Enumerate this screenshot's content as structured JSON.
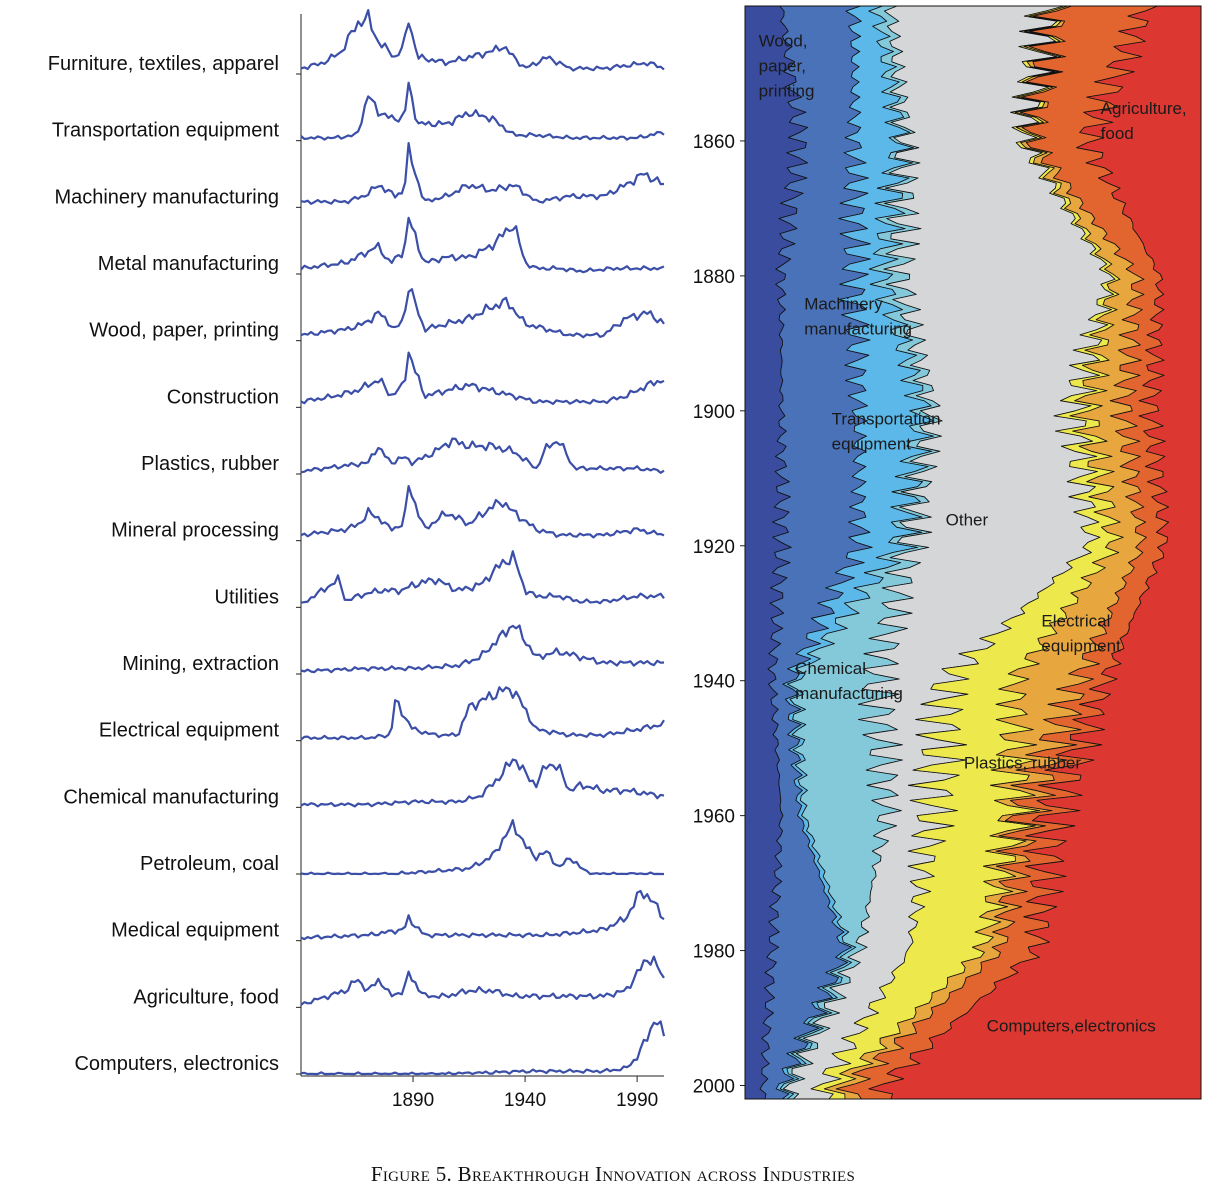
{
  "caption": "Figure 5. Breakthrough Innovation across Industries",
  "chart_data": [
    {
      "type": "line",
      "subtype": "ridgeline",
      "title": "",
      "line_color": "#3b4fa8",
      "x_range": [
        1840,
        2002
      ],
      "x_ticks": [
        1890,
        1940,
        1990
      ],
      "x_tick_labels": [
        "1890",
        "1940",
        "1990"
      ],
      "ylabel": "",
      "series": [
        {
          "name": "Furniture, textiles, apparel",
          "x": [
            1840,
            1850,
            1858,
            1865,
            1870,
            1874,
            1882,
            1886,
            1888,
            1892,
            1905,
            1915,
            1925,
            1930,
            1940,
            1950,
            1960,
            1975,
            1985,
            1995,
            2002
          ],
          "values": [
            0.1,
            0.2,
            0.4,
            0.9,
            1.0,
            0.6,
            0.3,
            0.5,
            1.0,
            0.3,
            0.2,
            0.3,
            0.4,
            0.5,
            0.1,
            0.3,
            0.1,
            0.1,
            0.15,
            0.2,
            0.1
          ]
        },
        {
          "name": "Transportation equipment",
          "x": [
            1840,
            1855,
            1865,
            1870,
            1875,
            1880,
            1886,
            1888,
            1892,
            1905,
            1915,
            1925,
            1935,
            1945,
            1960,
            1975,
            1990,
            2002
          ],
          "values": [
            0.05,
            0.05,
            0.1,
            0.8,
            0.5,
            0.4,
            0.4,
            1.0,
            0.3,
            0.3,
            0.5,
            0.4,
            0.1,
            0.1,
            0.05,
            0.05,
            0.05,
            0.15
          ]
        },
        {
          "name": "Machinery manufacturing",
          "x": [
            1840,
            1860,
            1868,
            1875,
            1882,
            1886,
            1888,
            1895,
            1905,
            1915,
            1925,
            1935,
            1945,
            1960,
            1975,
            1985,
            1993,
            2002
          ],
          "values": [
            0.1,
            0.1,
            0.2,
            0.4,
            0.2,
            0.3,
            1.0,
            0.1,
            0.2,
            0.4,
            0.3,
            0.4,
            0.1,
            0.2,
            0.2,
            0.4,
            0.6,
            0.4
          ]
        },
        {
          "name": "Metal manufacturing",
          "x": [
            1840,
            1860,
            1870,
            1874,
            1880,
            1886,
            1888,
            1895,
            1905,
            1915,
            1925,
            1930,
            1935,
            1940,
            1945,
            1955,
            1965,
            1980,
            1990,
            2002
          ],
          "values": [
            0.1,
            0.2,
            0.4,
            0.5,
            0.2,
            0.4,
            1.0,
            0.2,
            0.3,
            0.3,
            0.5,
            0.7,
            0.9,
            0.2,
            0.1,
            0.1,
            0.05,
            0.1,
            0.1,
            0.1
          ]
        },
        {
          "name": "Wood, paper, printing",
          "x": [
            1840,
            1860,
            1868,
            1875,
            1882,
            1886,
            1888,
            1895,
            1905,
            1915,
            1920,
            1925,
            1932,
            1940,
            1950,
            1960,
            1975,
            1985,
            1995,
            2002
          ],
          "values": [
            0.1,
            0.2,
            0.3,
            0.5,
            0.2,
            0.4,
            1.0,
            0.2,
            0.3,
            0.4,
            0.5,
            0.6,
            0.7,
            0.3,
            0.2,
            0.1,
            0.1,
            0.4,
            0.5,
            0.3
          ]
        },
        {
          "name": "Construction",
          "x": [
            1840,
            1855,
            1865,
            1870,
            1875,
            1880,
            1886,
            1888,
            1895,
            1905,
            1915,
            1925,
            1935,
            1945,
            1960,
            1975,
            1985,
            1995,
            2002
          ],
          "values": [
            0.1,
            0.2,
            0.3,
            0.4,
            0.5,
            0.2,
            0.4,
            1.0,
            0.2,
            0.3,
            0.4,
            0.3,
            0.2,
            0.1,
            0.1,
            0.1,
            0.2,
            0.4,
            0.5
          ]
        },
        {
          "name": "Plastics, rubber",
          "x": [
            1840,
            1860,
            1870,
            1874,
            1880,
            1886,
            1890,
            1900,
            1907,
            1915,
            1925,
            1935,
            1945,
            1950,
            1955,
            1962,
            1975,
            1990,
            2002
          ],
          "values": [
            0.05,
            0.15,
            0.2,
            0.5,
            0.2,
            0.3,
            0.2,
            0.4,
            0.6,
            0.5,
            0.5,
            0.4,
            0.1,
            0.5,
            0.6,
            0.1,
            0.1,
            0.1,
            0.05
          ]
        },
        {
          "name": "Mineral processing",
          "x": [
            1840,
            1860,
            1866,
            1870,
            1875,
            1880,
            1886,
            1888,
            1895,
            1905,
            1915,
            1925,
            1930,
            1935,
            1945,
            1955,
            1965,
            1975,
            1990,
            2002
          ],
          "values": [
            0.1,
            0.2,
            0.3,
            0.5,
            0.4,
            0.2,
            0.3,
            1.0,
            0.2,
            0.5,
            0.3,
            0.6,
            0.7,
            0.5,
            0.2,
            0.1,
            0.1,
            0.1,
            0.2,
            0.1
          ]
        },
        {
          "name": "Utilities",
          "x": [
            1840,
            1857,
            1860,
            1865,
            1875,
            1885,
            1890,
            1900,
            1910,
            1920,
            1925,
            1930,
            1935,
            1940,
            1945,
            1955,
            1965,
            1975,
            1990,
            2002
          ],
          "values": [
            0.05,
            0.5,
            0.1,
            0.2,
            0.3,
            0.3,
            0.4,
            0.5,
            0.3,
            0.4,
            0.6,
            0.8,
            0.9,
            0.3,
            0.2,
            0.2,
            0.1,
            0.1,
            0.2,
            0.2
          ]
        },
        {
          "name": "Mining, extraction",
          "x": [
            1840,
            1870,
            1890,
            1910,
            1920,
            1925,
            1930,
            1935,
            1940,
            1945,
            1955,
            1965,
            1975,
            1990,
            2002
          ],
          "values": [
            0.05,
            0.1,
            0.1,
            0.15,
            0.3,
            0.5,
            0.7,
            0.9,
            0.6,
            0.3,
            0.4,
            0.3,
            0.2,
            0.2,
            0.2
          ]
        },
        {
          "name": "Electrical equipment",
          "x": [
            1840,
            1870,
            1880,
            1882,
            1890,
            1900,
            1910,
            1915,
            1925,
            1930,
            1935,
            1945,
            1960,
            1975,
            1990,
            2002
          ],
          "values": [
            0.05,
            0.05,
            0.1,
            0.7,
            0.2,
            0.1,
            0.1,
            0.6,
            0.8,
            0.9,
            0.9,
            0.2,
            0.1,
            0.1,
            0.2,
            0.3
          ]
        },
        {
          "name": "Chemical manufacturing",
          "x": [
            1840,
            1870,
            1890,
            1910,
            1920,
            1930,
            1935,
            1940,
            1945,
            1950,
            1955,
            1960,
            1965,
            1975,
            1985,
            2002
          ],
          "values": [
            0.05,
            0.05,
            0.1,
            0.1,
            0.2,
            0.6,
            0.9,
            0.6,
            0.4,
            0.8,
            0.7,
            0.3,
            0.4,
            0.3,
            0.3,
            0.2
          ]
        },
        {
          "name": "Petroleum, coal",
          "x": [
            1840,
            1880,
            1900,
            1915,
            1925,
            1935,
            1940,
            1945,
            1950,
            1955,
            1960,
            1965,
            1970,
            2002
          ],
          "values": [
            0.0,
            0.0,
            0.05,
            0.1,
            0.3,
            0.9,
            0.5,
            0.3,
            0.4,
            0.1,
            0.3,
            0.1,
            0.0,
            0.0
          ]
        },
        {
          "name": "Medical equipment",
          "x": [
            1840,
            1870,
            1886,
            1888,
            1895,
            1910,
            1930,
            1950,
            1965,
            1975,
            1985,
            1992,
            1997,
            2002
          ],
          "values": [
            0.05,
            0.1,
            0.2,
            0.4,
            0.1,
            0.1,
            0.1,
            0.1,
            0.15,
            0.2,
            0.4,
            0.9,
            0.7,
            0.4
          ]
        },
        {
          "name": "Agriculture, food",
          "x": [
            1840,
            1860,
            1865,
            1870,
            1875,
            1880,
            1886,
            1888,
            1895,
            1905,
            1915,
            1925,
            1935,
            1945,
            1955,
            1965,
            1975,
            1985,
            1995,
            1998,
            2002
          ],
          "values": [
            0.05,
            0.3,
            0.5,
            0.3,
            0.5,
            0.2,
            0.3,
            0.6,
            0.2,
            0.2,
            0.3,
            0.3,
            0.2,
            0.2,
            0.2,
            0.2,
            0.2,
            0.3,
            0.9,
            0.8,
            0.5
          ]
        },
        {
          "name": "Computers, electronics",
          "x": [
            1840,
            1900,
            1920,
            1940,
            1960,
            1975,
            1985,
            1990,
            1995,
            1998,
            2002
          ],
          "values": [
            0.0,
            0.0,
            0.02,
            0.05,
            0.05,
            0.05,
            0.1,
            0.3,
            0.7,
            1.0,
            0.7
          ]
        }
      ]
    },
    {
      "type": "area",
      "subtype": "stacked-share",
      "title": "",
      "y_range": [
        1840,
        2002
      ],
      "y_ticks": [
        1860,
        1880,
        1900,
        1920,
        1940,
        1960,
        1980,
        2000
      ],
      "y_tick_labels": [
        "1860",
        "1880",
        "1900",
        "1920",
        "1940",
        "1960",
        "1980",
        "2000"
      ],
      "years": [
        1840,
        1860,
        1880,
        1900,
        1920,
        1940,
        1960,
        1980,
        2000
      ],
      "series": [
        {
          "name": "Wood, paper, printing",
          "color": "#3a4c9e",
          "values": [
            0.08,
            0.12,
            0.08,
            0.08,
            0.08,
            0.06,
            0.08,
            0.06,
            0.04
          ]
        },
        {
          "name": "Transportation equipment",
          "color": "#4a72b8",
          "values": [
            0.16,
            0.12,
            0.16,
            0.17,
            0.17,
            0.04,
            0.04,
            0.16,
            0.04
          ]
        },
        {
          "name": "Machinery manufacturing",
          "color": "#5bb8e8",
          "values": [
            0.05,
            0.1,
            0.06,
            0.14,
            0.09,
            0.01,
            0.01,
            0.01,
            0.01
          ]
        },
        {
          "name": "Chemical manufacturing",
          "color": "#84c9da",
          "values": [
            0.03,
            0.01,
            0.04,
            0.02,
            0.02,
            0.18,
            0.18,
            0.02,
            0.01
          ]
        },
        {
          "name": "Other",
          "color": "#d4d6d8",
          "values": [
            0.34,
            0.26,
            0.46,
            0.31,
            0.4,
            0.15,
            0.1,
            0.11,
            0.07
          ]
        },
        {
          "name": "Plastics, rubber",
          "color": "#ede84b",
          "values": [
            0.01,
            0.01,
            0.01,
            0.03,
            0.05,
            0.15,
            0.18,
            0.16,
            0.03
          ]
        },
        {
          "name": "Electrical equipment",
          "color": "#e8a63e",
          "values": [
            0.01,
            0.01,
            0.05,
            0.08,
            0.06,
            0.14,
            0.02,
            0.04,
            0.03
          ]
        },
        {
          "name": "Agriculture, food",
          "color": "#e2642f",
          "values": [
            0.2,
            0.12,
            0.05,
            0.06,
            0.05,
            0.06,
            0.06,
            0.08,
            0.07
          ]
        },
        {
          "name": "Computers, electronics",
          "color": "#dc3831",
          "values": [
            0.12,
            0.25,
            0.09,
            0.11,
            0.08,
            0.21,
            0.33,
            0.36,
            0.7
          ]
        }
      ],
      "annotations": [
        {
          "series": "Wood, paper, printing",
          "lines": [
            "Wood,",
            "paper,",
            "printing"
          ]
        },
        {
          "series": "Agriculture, food",
          "lines": [
            "Agriculture,",
            "food"
          ]
        },
        {
          "series": "Machinery manufacturing",
          "lines": [
            "Machinery",
            "manufacturing"
          ]
        },
        {
          "series": "Transportation equipment",
          "lines": [
            "Transportation",
            "equipment"
          ]
        },
        {
          "series": "Other",
          "lines": [
            "Other"
          ]
        },
        {
          "series": "Electrical equipment",
          "lines": [
            "Electrical",
            "equipment"
          ]
        },
        {
          "series": "Chemical manufacturing",
          "lines": [
            "Chemical",
            "manufacturing"
          ]
        },
        {
          "series": "Plastics, rubber",
          "lines": [
            "Plastics, rubber"
          ]
        },
        {
          "series": "Computers, electronics",
          "lines": [
            "Computers,electronics"
          ]
        }
      ]
    }
  ]
}
